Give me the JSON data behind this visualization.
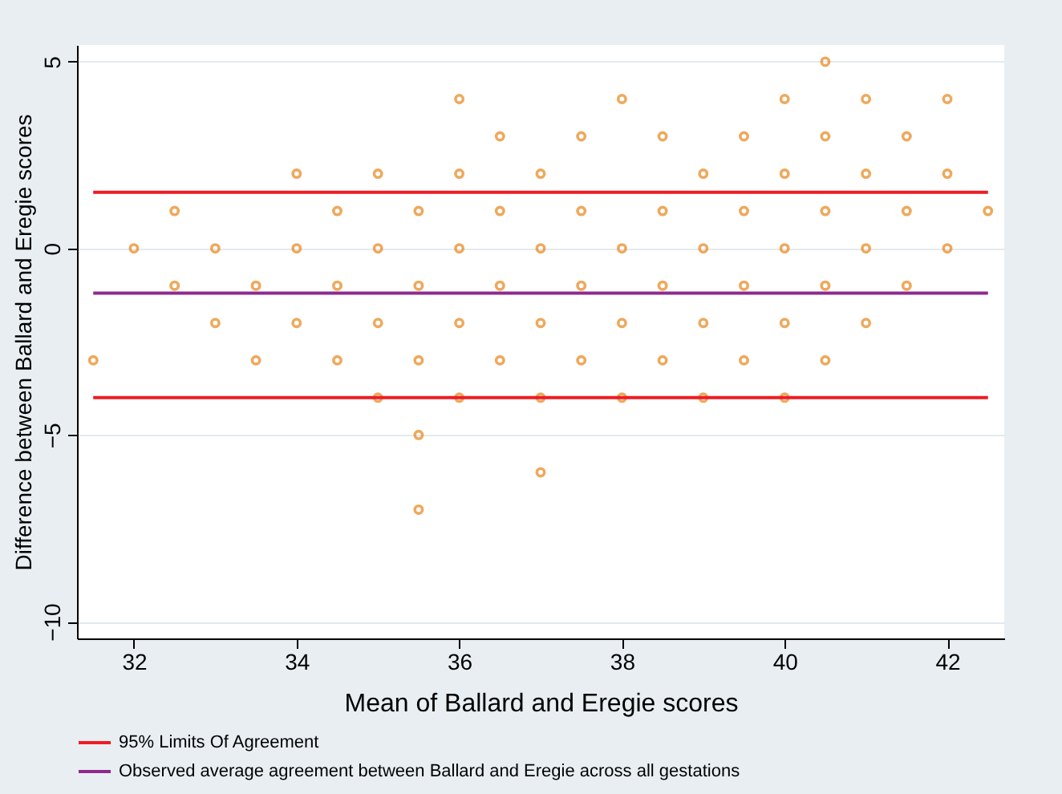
{
  "chart_data": {
    "type": "scatter",
    "xlabel": "Mean of Ballard and Eregie scores",
    "ylabel": "Difference between Ballard and Eregie scores",
    "x": [
      31.5,
      32,
      32.5,
      32.5,
      33,
      33,
      33.5,
      33.5,
      34,
      34,
      34,
      34.5,
      34.5,
      34.5,
      35,
      35,
      35,
      35,
      35.5,
      35.5,
      35.5,
      35.5,
      35.5,
      36,
      36,
      36,
      36,
      36,
      36.5,
      36.5,
      36.5,
      36.5,
      37,
      37,
      37,
      37,
      37,
      37.5,
      37.5,
      37.5,
      37.5,
      38,
      38,
      38,
      38,
      38.5,
      38.5,
      38.5,
      38.5,
      39,
      39,
      39,
      39,
      39.5,
      39.5,
      39.5,
      39.5,
      40,
      40,
      40,
      40,
      40,
      40.5,
      40.5,
      40.5,
      40.5,
      40.5,
      41,
      41,
      41,
      41,
      41.5,
      41.5,
      41.5,
      42,
      42,
      42,
      42.5
    ],
    "series": [
      {
        "color": "#e8851a",
        "values": [
          -3,
          0,
          1,
          -1,
          0,
          -2,
          -1,
          -3,
          2,
          0,
          -2,
          1,
          -1,
          -3,
          2,
          0,
          -2,
          -4,
          1,
          -1,
          -3,
          -5,
          -7,
          4,
          2,
          0,
          -2,
          -4,
          3,
          1,
          -1,
          -3,
          2,
          0,
          -2,
          -4,
          -6,
          3,
          1,
          -1,
          -3,
          4,
          0,
          -2,
          -4,
          3,
          1,
          -1,
          -3,
          2,
          0,
          -2,
          -4,
          3,
          1,
          -1,
          -3,
          4,
          2,
          0,
          -2,
          -4,
          5,
          3,
          1,
          -1,
          -3,
          4,
          2,
          0,
          -2,
          3,
          1,
          -1,
          4,
          2,
          0,
          1
        ]
      }
    ],
    "xlim": [
      31.3,
      42.7
    ],
    "ylim": [
      -10.45,
      5.45
    ],
    "xticks": [
      32,
      34,
      36,
      38,
      40,
      42
    ],
    "yticks": [
      -10,
      -5,
      0,
      5
    ],
    "ref_lines": [
      {
        "axis": "y",
        "value": 1.5,
        "label": "95% Limits Of Agreement",
        "color": "#ee1c24"
      },
      {
        "axis": "y",
        "value": -4,
        "color": "#ee1c24"
      },
      {
        "axis": "y",
        "value": -1.2,
        "label": "Observed average agreement between Ballard and Eregie across all gestations",
        "color": "#8e2a8e"
      }
    ],
    "grid": "y",
    "legend": "bottom",
    "marker": "circle"
  }
}
